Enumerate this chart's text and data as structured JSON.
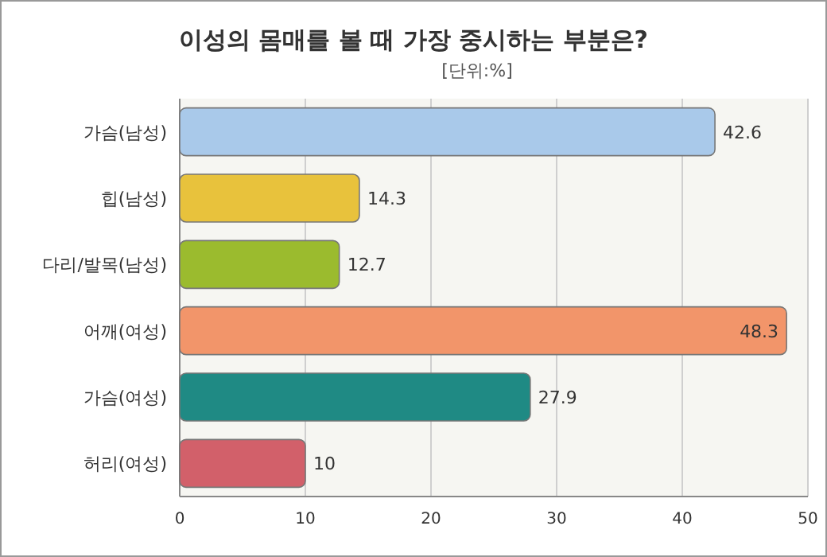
{
  "chart_data": {
    "type": "bar",
    "orientation": "horizontal",
    "title": "이성의 몸매를 볼 때 가장 중시하는 부분은?",
    "subtitle": "[단위:%]",
    "categories": [
      "가슴(남성)",
      "힙(남성)",
      "다리/발목(남성)",
      "어깨(여성)",
      "가슴(여성)",
      "허리(여성)"
    ],
    "values": [
      42.6,
      14.3,
      12.7,
      48.3,
      27.9,
      10
    ],
    "colors": [
      "#a9c9ea",
      "#e8c23c",
      "#9bbb2e",
      "#f2956a",
      "#1f8a84",
      "#d2606a"
    ],
    "xlim": [
      0,
      50
    ],
    "xticks": [
      0,
      10,
      20,
      30,
      40,
      50
    ],
    "grid": "x",
    "data_labels": true
  }
}
